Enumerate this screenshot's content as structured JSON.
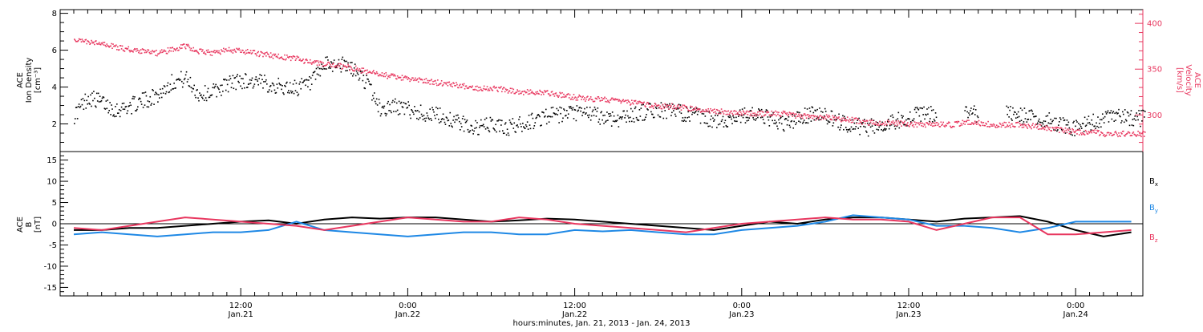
{
  "chart_data": [
    {
      "type": "scatter",
      "panel": "top",
      "ylabel_left": [
        "ACE",
        "Ion Density",
        "[cm⁻³]"
      ],
      "ylabel_right": [
        "ACE",
        "Velocity",
        "[km/s]"
      ],
      "yticks_left": [
        "2",
        "4",
        "6",
        "8"
      ],
      "yticks_right": [
        "300",
        "350",
        "400"
      ],
      "ylim_left": [
        0.5,
        8.2
      ],
      "ylim_right": [
        260,
        415
      ],
      "series": [
        {
          "color": "#000000",
          "x_hours": [
            0,
            1,
            2,
            3,
            4,
            5,
            6,
            7,
            8,
            9,
            10,
            11,
            12,
            13,
            14,
            15,
            16,
            17,
            18,
            19,
            20,
            21,
            22,
            23,
            24,
            25,
            26,
            27,
            28,
            29,
            30,
            31,
            32,
            33,
            34,
            35,
            36,
            37,
            38,
            39,
            40,
            41,
            42,
            43,
            44,
            45,
            46,
            47,
            48,
            49,
            50,
            51,
            52,
            53,
            54,
            55,
            56,
            57,
            58,
            59,
            60,
            61,
            62,
            63,
            64,
            65,
            66,
            67,
            68,
            69,
            70,
            71,
            72,
            73,
            74,
            75,
            76,
            77,
            78,
            79,
            80
          ],
          "values": [
            2.5,
            3.5,
            3.2,
            2.8,
            3.0,
            3.3,
            3.6,
            4.3,
            4.5,
            3.6,
            3.8,
            4.2,
            4.4,
            4.3,
            4.2,
            4.0,
            4.0,
            4.2,
            5.2,
            5.3,
            5.0,
            4.3,
            2.8,
            3.0,
            2.8,
            2.6,
            2.5,
            2.3,
            2.0,
            1.8,
            2.0,
            1.8,
            2.0,
            2.2,
            2.5,
            2.5,
            2.6,
            2.6,
            2.4,
            2.3,
            2.5,
            2.7,
            2.8,
            2.7,
            2.6,
            2.4,
            2.2,
            2.3,
            2.5,
            2.5,
            2.3,
            2.0,
            2.3,
            2.6,
            2.5,
            2.1,
            2.0,
            1.8,
            2.0,
            2.2,
            2.4,
            2.6,
            2.5,
            null,
            2.7,
            2.5,
            null,
            2.6,
            2.5,
            2.3,
            2.2,
            2.0,
            1.8,
            2.1,
            2.3,
            2.4,
            2.4,
            2.3,
            null,
            null,
            null
          ],
          "spread": 0.45
        },
        {
          "color": "#e8375f",
          "x_hours": [
            0,
            1,
            2,
            3,
            4,
            5,
            6,
            7,
            8,
            9,
            10,
            11,
            12,
            13,
            14,
            15,
            16,
            17,
            18,
            19,
            20,
            21,
            22,
            23,
            24,
            25,
            26,
            27,
            28,
            29,
            30,
            31,
            32,
            33,
            34,
            35,
            36,
            37,
            38,
            39,
            40,
            41,
            42,
            43,
            44,
            45,
            46,
            47,
            48,
            49,
            50,
            51,
            52,
            53,
            54,
            55,
            56,
            57,
            58,
            59,
            60,
            61,
            62,
            63,
            64,
            65,
            66,
            67,
            68,
            69,
            70,
            71,
            72,
            73,
            74,
            75,
            76,
            77,
            78,
            79,
            80
          ],
          "values": [
            383,
            380,
            378,
            375,
            372,
            370,
            368,
            372,
            376,
            370,
            368,
            372,
            370,
            368,
            366,
            364,
            362,
            358,
            356,
            354,
            352,
            348,
            345,
            342,
            340,
            338,
            336,
            335,
            332,
            330,
            330,
            328,
            326,
            325,
            325,
            322,
            320,
            318,
            318,
            316,
            314,
            312,
            310,
            310,
            308,
            306,
            305,
            304,
            303,
            302,
            302,
            302,
            300,
            298,
            298,
            296,
            295,
            292,
            292,
            292,
            290,
            290,
            290,
            290,
            292,
            292,
            290,
            290,
            290,
            288,
            286,
            284,
            282,
            282,
            280,
            280,
            280,
            280,
            null,
            null,
            null
          ],
          "spread": 3
        }
      ]
    },
    {
      "type": "line",
      "panel": "bottom",
      "ylabel": [
        "ACE",
        "B",
        "[nT]"
      ],
      "yticks": [
        "-15",
        "-10",
        "-5",
        "0",
        "5",
        "10",
        "15"
      ],
      "ylim": [
        -17,
        17
      ],
      "xaxis": {
        "ticks": [
          {
            "time": "12:00",
            "date": "Jan.21"
          },
          {
            "time": "0:00",
            "date": "Jan.22"
          },
          {
            "time": "12:00",
            "date": "Jan.22"
          },
          {
            "time": "0:00",
            "date": "Jan.23"
          },
          {
            "time": "12:00",
            "date": "Jan.23"
          },
          {
            "time": "0:00",
            "date": "Jan.24"
          }
        ],
        "label": "hours:minutes, Jan. 21, 2013 - Jan. 24, 2013"
      },
      "legend": [
        {
          "base": "B",
          "sub": "x",
          "color": "#000000"
        },
        {
          "base": "B",
          "sub": "y",
          "color": "#1e88e5"
        },
        {
          "base": "B",
          "sub": "z",
          "color": "#e8375f"
        }
      ],
      "series": [
        {
          "color": "#000000",
          "x_hours": [
            0,
            2,
            4,
            6,
            8,
            10,
            12,
            14,
            16,
            18,
            20,
            22,
            24,
            26,
            28,
            30,
            32,
            34,
            36,
            38,
            40,
            42,
            44,
            46,
            48,
            50,
            52,
            54,
            56,
            58,
            60,
            62,
            64,
            66,
            68,
            70,
            72,
            74,
            76,
            78,
            80
          ],
          "values": [
            -1.5,
            -1.5,
            -1.0,
            -1.0,
            -0.5,
            0.0,
            0.5,
            0.8,
            0.0,
            1.0,
            1.5,
            1.2,
            1.5,
            1.5,
            1.0,
            0.5,
            0.8,
            1.2,
            1.0,
            0.5,
            0.0,
            -0.5,
            -1.0,
            -1.5,
            -0.5,
            0.5,
            0.0,
            1.0,
            1.5,
            1.5,
            1.0,
            0.5,
            1.2,
            1.5,
            1.8,
            0.5,
            -1.5,
            -3.0,
            -2.0,
            null,
            null
          ]
        },
        {
          "color": "#1e88e5",
          "x_hours": [
            0,
            2,
            4,
            6,
            8,
            10,
            12,
            14,
            16,
            18,
            20,
            22,
            24,
            26,
            28,
            30,
            32,
            34,
            36,
            38,
            40,
            42,
            44,
            46,
            48,
            50,
            52,
            54,
            56,
            58,
            60,
            62,
            64,
            66,
            68,
            70,
            72,
            74,
            76,
            78,
            80
          ],
          "values": [
            -2.5,
            -2.0,
            -2.5,
            -3.0,
            -2.5,
            -2.0,
            -2.0,
            -1.5,
            0.5,
            -1.5,
            -2.0,
            -2.5,
            -3.0,
            -2.5,
            -2.0,
            -2.0,
            -2.5,
            -2.5,
            -1.5,
            -1.8,
            -1.5,
            -2.0,
            -2.5,
            -2.5,
            -1.5,
            -1.0,
            -0.5,
            0.5,
            2.0,
            1.5,
            1.0,
            -0.5,
            -0.5,
            -1.0,
            -2.0,
            -1.0,
            0.5,
            0.5,
            0.5,
            null,
            null
          ]
        },
        {
          "color": "#e8375f",
          "x_hours": [
            0,
            2,
            4,
            6,
            8,
            10,
            12,
            14,
            16,
            18,
            20,
            22,
            24,
            26,
            28,
            30,
            32,
            34,
            36,
            38,
            40,
            42,
            44,
            46,
            48,
            50,
            52,
            54,
            56,
            58,
            60,
            62,
            64,
            66,
            68,
            70,
            72,
            74,
            76,
            78,
            80
          ],
          "values": [
            -1.0,
            -1.5,
            -0.5,
            0.5,
            1.5,
            1.0,
            0.5,
            0.0,
            -0.5,
            -1.5,
            -0.5,
            0.5,
            1.5,
            1.0,
            0.5,
            0.5,
            1.5,
            1.0,
            0.0,
            -0.5,
            -1.0,
            -1.5,
            -2.0,
            -1.0,
            0.0,
            0.5,
            1.0,
            1.5,
            1.0,
            1.0,
            0.5,
            -1.5,
            0.0,
            1.5,
            1.5,
            -2.5,
            -2.5,
            -2.0,
            -1.5,
            null,
            null
          ]
        }
      ]
    }
  ]
}
